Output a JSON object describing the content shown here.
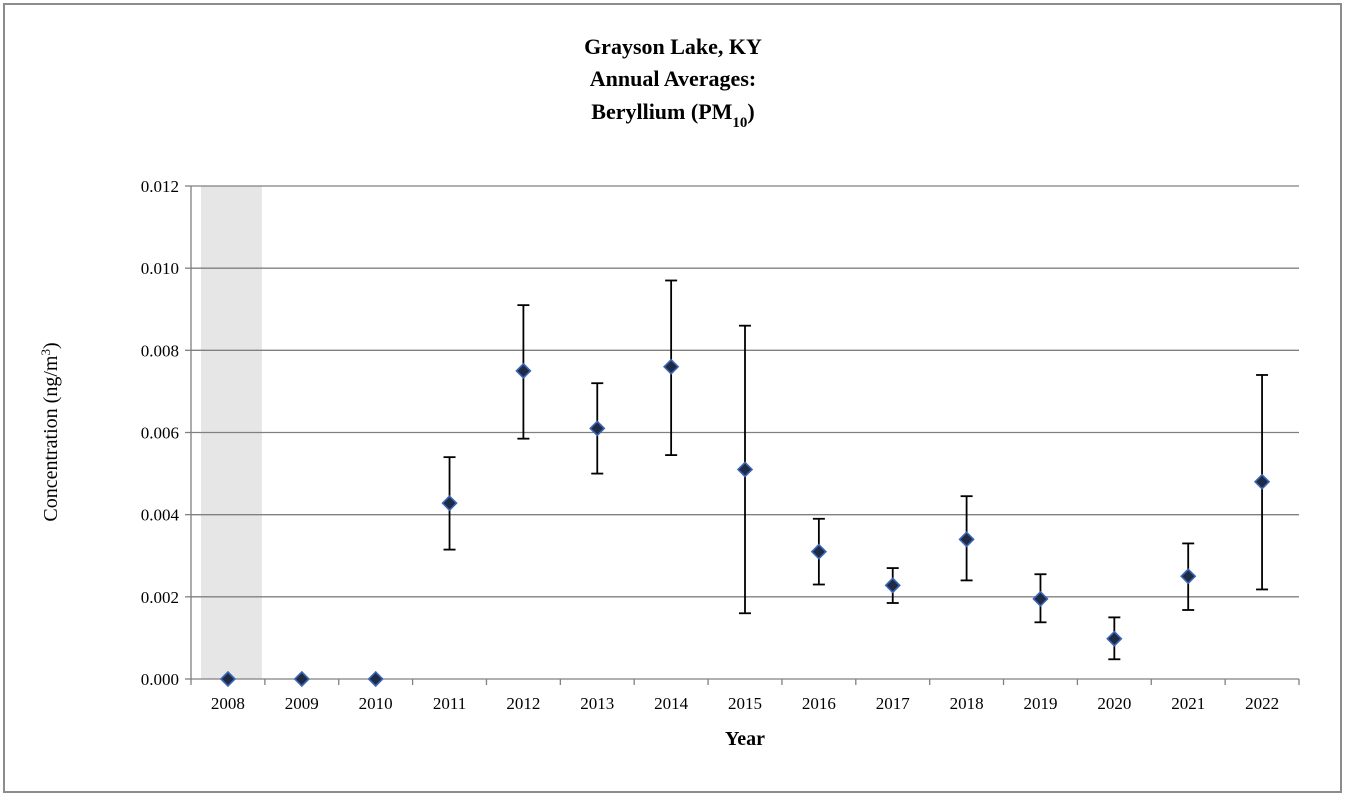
{
  "chart_data": {
    "type": "scatter",
    "title_lines": [
      "Grayson Lake, KY",
      "Annual Averages:",
      "Beryllium (PM"
    ],
    "title_subscript": "10",
    "title_suffix": ")",
    "xlabel": "Year",
    "ylabel_text": "Concentration (ng/m",
    "ylabel_superscript": "3",
    "ylabel_suffix": ")",
    "categories": [
      "2008",
      "2009",
      "2010",
      "2011",
      "2012",
      "2013",
      "2014",
      "2015",
      "2016",
      "2017",
      "2018",
      "2019",
      "2020",
      "2021",
      "2022"
    ],
    "yticks": [
      "0.000",
      "0.002",
      "0.004",
      "0.006",
      "0.008",
      "0.010",
      "0.012"
    ],
    "ylim": [
      0,
      0.012
    ],
    "grid": true,
    "shaded_category": "2008",
    "series": [
      {
        "values": [
          0.0,
          0.0,
          0.0,
          0.00428,
          0.0075,
          0.0061,
          0.0076,
          0.0051,
          0.0031,
          0.00228,
          0.0034,
          0.00195,
          0.00098,
          0.0025,
          0.0048
        ],
        "error_low": [
          null,
          null,
          null,
          0.00315,
          0.00585,
          0.005,
          0.00545,
          0.0016,
          0.0023,
          0.00185,
          0.0024,
          0.00138,
          0.00048,
          0.00168,
          0.00218
        ],
        "error_high": [
          null,
          null,
          null,
          0.0054,
          0.0091,
          0.0072,
          0.0097,
          0.0086,
          0.0039,
          0.0027,
          0.00445,
          0.00255,
          0.0015,
          0.0033,
          0.0074
        ]
      }
    ],
    "colors": {
      "marker_fill": "#1f2a44",
      "marker_stroke": "#3a66b5",
      "grid": "#808080",
      "shade": "#e6e6e6",
      "error_bar": "#000000"
    }
  }
}
